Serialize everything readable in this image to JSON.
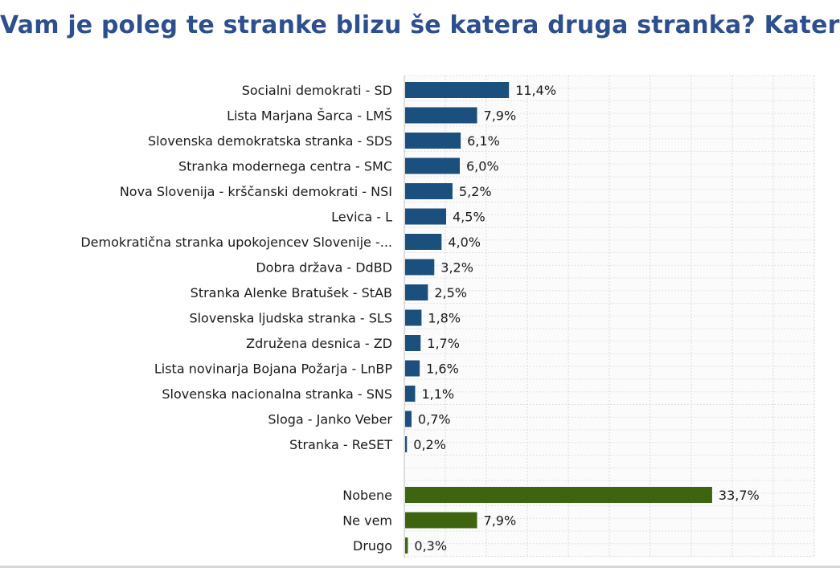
{
  "chart_data": {
    "type": "bar",
    "orientation": "horizontal",
    "title": "Vam je poleg te stranke blizu še katera druga stranka? Katera?",
    "value_suffix": "%",
    "decimal_separator": ",",
    "xlim": [
      0,
      45
    ],
    "grid": true,
    "colors": {
      "parties": "#1b4f7e",
      "other": "#3e6410",
      "title": "#2d4f8e"
    },
    "groups": [
      {
        "name": "parties",
        "categories": [
          "Socialni demokrati - SD",
          "Lista Marjana Šarca - LMŠ",
          "Slovenska demokratska stranka - SDS",
          "Stranka modernega centra - SMC",
          "Nova Slovenija - krščanski demokrati - NSI",
          "Levica - L",
          "Demokratična stranka upokojencev Slovenije -...",
          "Dobra država - DdBD",
          "Stranka Alenke Bratušek - StAB",
          "Slovenska ljudska stranka - SLS",
          "Združena desnica - ZD",
          "Lista novinarja Bojana Požarja - LnBP",
          "Slovenska nacionalna stranka - SNS",
          "Sloga - Janko Veber",
          "Stranka - ReSET"
        ],
        "values": [
          11.4,
          7.9,
          6.1,
          6.0,
          5.2,
          4.5,
          4.0,
          3.2,
          2.5,
          1.8,
          1.7,
          1.6,
          1.1,
          0.7,
          0.2
        ]
      },
      {
        "name": "other",
        "categories": [
          "Nobene",
          "Ne vem",
          "Drugo"
        ],
        "values": [
          33.7,
          7.9,
          0.3
        ]
      }
    ]
  }
}
